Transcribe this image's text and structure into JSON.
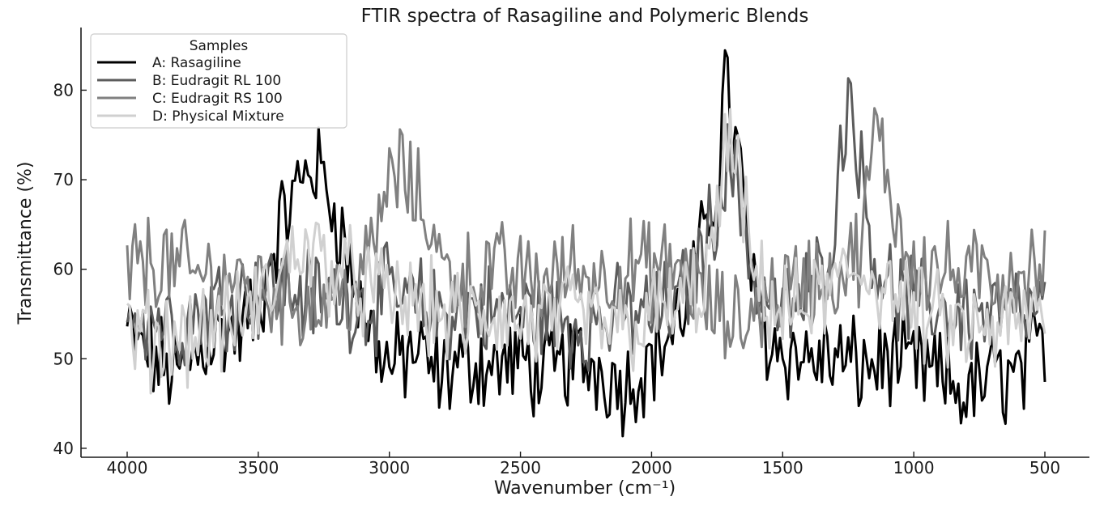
{
  "chart_data": {
    "type": "line",
    "title": "FTIR spectra of Rasagiline and Polymeric Blends",
    "xlabel": "Wavenumber (cm⁻¹)",
    "ylabel": "Transmittance (%)",
    "xlim": [
      4000,
      500
    ],
    "x_reversed": true,
    "ylim": [
      39,
      87
    ],
    "xticks": [
      4000,
      3500,
      3000,
      2500,
      2000,
      1500,
      1000,
      500
    ],
    "yticks": [
      40,
      50,
      60,
      70,
      80
    ],
    "grid": false,
    "legend": {
      "title": "Samples",
      "placement": "top-left"
    },
    "series": [
      {
        "name": "A: Rasagiline",
        "color": "#000000",
        "x": [
          4000,
          3900,
          3800,
          3700,
          3600,
          3500,
          3450,
          3400,
          3350,
          3300,
          3250,
          3200,
          3150,
          3100,
          3050,
          3000,
          2950,
          2900,
          2850,
          2800,
          2700,
          2600,
          2500,
          2400,
          2300,
          2200,
          2100,
          2000,
          1950,
          1900,
          1850,
          1800,
          1750,
          1720,
          1700,
          1680,
          1650,
          1620,
          1600,
          1550,
          1500,
          1400,
          1300,
          1200,
          1100,
          1000,
          900,
          800,
          700,
          600,
          500
        ],
        "y": [
          53,
          50,
          48,
          52,
          53,
          55,
          62,
          66,
          69,
          72,
          70,
          66,
          60,
          55,
          52,
          49,
          50,
          51,
          49,
          48,
          50,
          49,
          50,
          48,
          50,
          49,
          47,
          50,
          52,
          54,
          58,
          63,
          70,
          82,
          78,
          74,
          68,
          60,
          55,
          52,
          51,
          50,
          50,
          49,
          50,
          49,
          48,
          46,
          48,
          48,
          52
        ]
      },
      {
        "name": "B: Eudragit RL 100",
        "color": "#5c5c5c",
        "x": [
          4000,
          3900,
          3800,
          3700,
          3600,
          3500,
          3400,
          3300,
          3200,
          3100,
          3000,
          2900,
          2800,
          2700,
          2600,
          2500,
          2400,
          2300,
          2200,
          2100,
          2000,
          1900,
          1800,
          1750,
          1700,
          1650,
          1600,
          1500,
          1400,
          1350,
          1300,
          1270,
          1250,
          1230,
          1200,
          1150,
          1100,
          1000,
          900,
          800,
          700,
          600,
          500
        ],
        "y": [
          56,
          55,
          54,
          56,
          57,
          58,
          58,
          57,
          57,
          56,
          57,
          56,
          55,
          56,
          55,
          55,
          55,
          54,
          54,
          55,
          55,
          56,
          62,
          68,
          72,
          66,
          58,
          55,
          57,
          60,
          66,
          74,
          82,
          78,
          70,
          62,
          58,
          56,
          56,
          55,
          55,
          55,
          55
        ]
      },
      {
        "name": "C: Eudragit RS 100",
        "color": "#808080",
        "x": [
          4000,
          3900,
          3800,
          3700,
          3600,
          3500,
          3400,
          3300,
          3200,
          3100,
          3050,
          3000,
          2950,
          2900,
          2850,
          2800,
          2700,
          2600,
          2500,
          2400,
          2300,
          2200,
          2100,
          2000,
          1900,
          1850,
          1800,
          1750,
          1700,
          1650,
          1600,
          1500,
          1400,
          1300,
          1200,
          1170,
          1150,
          1100,
          1050,
          1000,
          900,
          800,
          700,
          600,
          500
        ],
        "y": [
          60,
          61,
          60,
          59,
          59,
          58,
          57,
          56,
          57,
          59,
          64,
          70,
          71,
          68,
          66,
          60,
          59,
          60,
          59,
          59,
          60,
          59,
          60,
          60,
          60,
          59,
          56,
          55,
          54,
          54,
          56,
          58,
          59,
          59,
          62,
          70,
          76,
          70,
          64,
          61,
          60,
          59,
          59,
          60,
          60
        ]
      },
      {
        "name": "D: Physical Mixture",
        "color": "#d0d0d0",
        "x": [
          4000,
          3900,
          3800,
          3700,
          3600,
          3500,
          3400,
          3350,
          3300,
          3250,
          3200,
          3100,
          3000,
          2900,
          2800,
          2700,
          2600,
          2500,
          2400,
          2300,
          2200,
          2100,
          2000,
          1900,
          1800,
          1750,
          1720,
          1700,
          1680,
          1650,
          1600,
          1500,
          1400,
          1300,
          1200,
          1100,
          1000,
          900,
          800,
          700,
          600,
          500
        ],
        "y": [
          53,
          52,
          53,
          53,
          54,
          56,
          60,
          63,
          62,
          61,
          60,
          58,
          57,
          56,
          55,
          54,
          55,
          54,
          54,
          55,
          54,
          53,
          55,
          56,
          58,
          65,
          72,
          75,
          72,
          66,
          58,
          55,
          56,
          58,
          60,
          58,
          55,
          54,
          53,
          53,
          54,
          55
        ]
      }
    ]
  }
}
